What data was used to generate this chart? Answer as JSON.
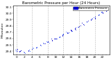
{
  "title": "Barometric Pressure per Hour (24 Hours)",
  "ylabel_left": "Milwaukee",
  "hours": [
    0,
    1,
    2,
    3,
    4,
    5,
    6,
    7,
    8,
    9,
    10,
    11,
    12,
    13,
    14,
    15,
    16,
    17,
    18,
    19,
    20,
    21,
    22,
    23
  ],
  "x_labels": [
    "0",
    "",
    "2",
    "",
    "4",
    "",
    "6",
    "",
    "8",
    "",
    "10",
    "",
    "12",
    "",
    "14",
    "",
    "16",
    "",
    "18",
    "",
    "20",
    "",
    "22",
    ""
  ],
  "pressure": [
    29.42,
    29.4,
    29.38,
    29.41,
    29.44,
    29.46,
    29.5,
    29.52,
    29.55,
    29.58,
    29.6,
    29.63,
    29.66,
    29.7,
    29.73,
    29.76,
    29.79,
    29.83,
    29.87,
    29.9,
    29.93,
    29.97,
    30.01,
    30.04
  ],
  "dot_color": "#0000cc",
  "dot_color2": "#3366ff",
  "legend_color": "#0000cc",
  "ylim_min": 29.35,
  "ylim_max": 30.12,
  "grid_color": "#aaaaaa",
  "bg_color": "#ffffff",
  "title_fontsize": 4.0,
  "tick_fontsize": 3.2,
  "legend_label": "Barometric Pressure",
  "legend_fontsize": 3.0,
  "yticks": [
    29.4,
    29.5,
    29.6,
    29.7,
    29.8,
    29.9,
    30.0,
    30.1
  ],
  "grid_x": [
    0,
    4,
    8,
    12,
    16,
    20
  ]
}
